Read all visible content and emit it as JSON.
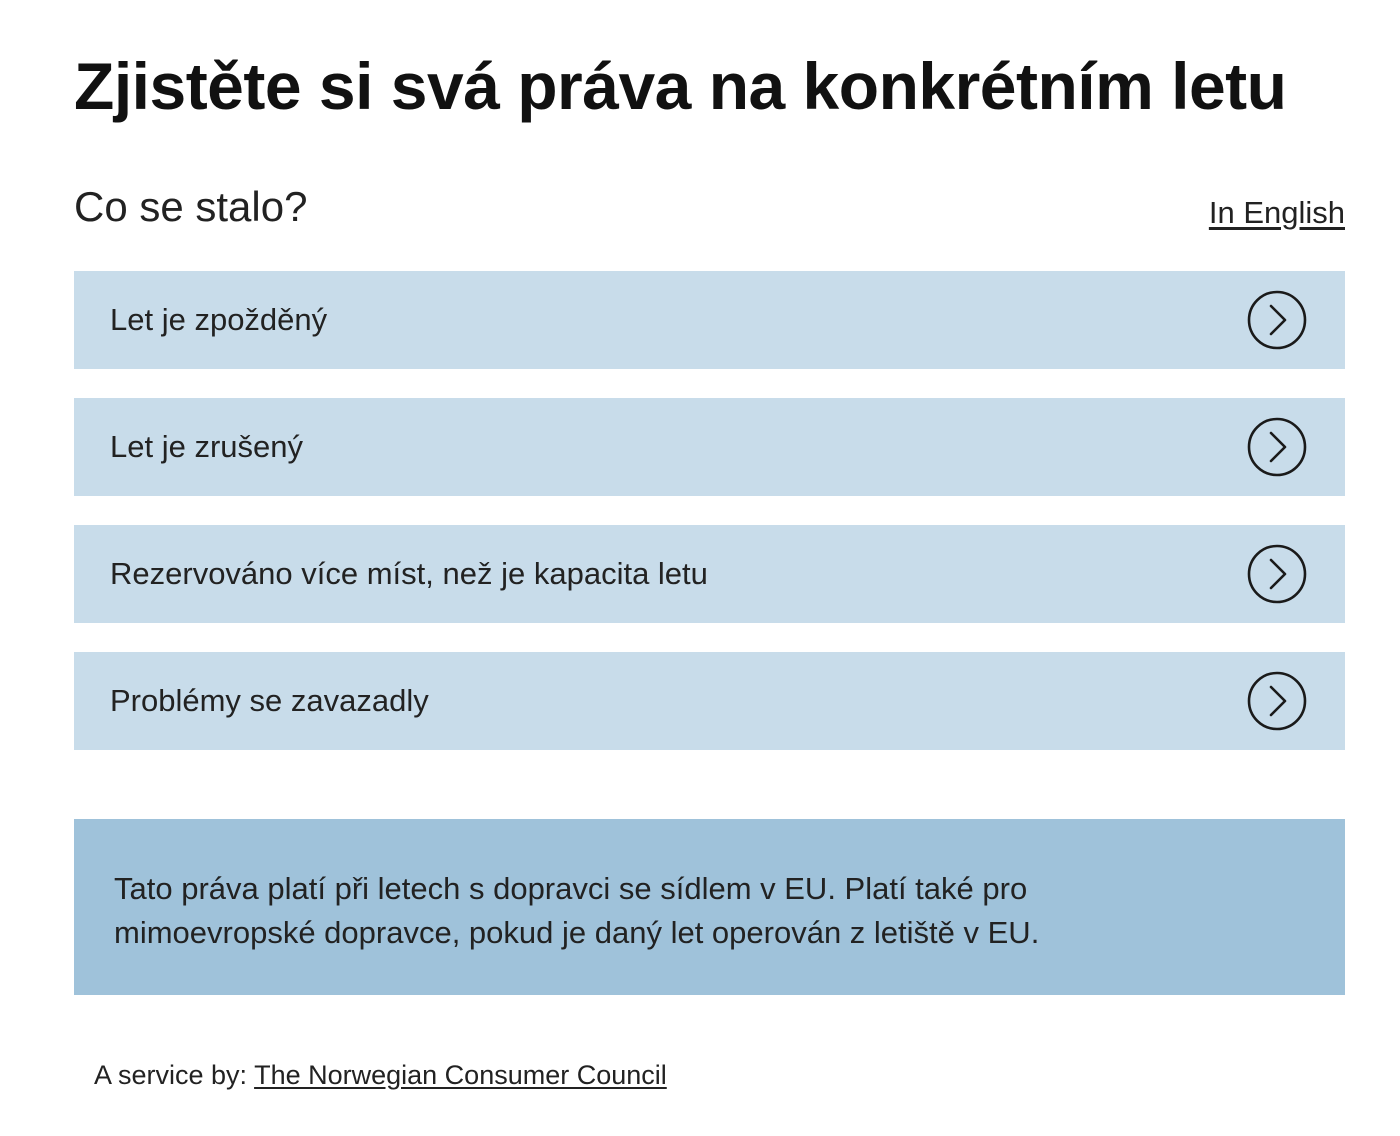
{
  "page": {
    "title": "Zjistěte si svá práva na konkrétním letu"
  },
  "subheader": {
    "question": "Co se stalo?",
    "language_link": "In English"
  },
  "options": [
    {
      "label": "Let je zpožděný",
      "icon": "chevron-right-circle-icon"
    },
    {
      "label": "Let je zrušený",
      "icon": "chevron-right-circle-icon"
    },
    {
      "label": "Rezervováno více míst, než je kapacita letu",
      "icon": "chevron-right-circle-icon"
    },
    {
      "label": "Problémy se zavazadly",
      "icon": "chevron-right-circle-icon"
    }
  ],
  "info": {
    "text": "Tato práva platí při letech s dopravci se sídlem v EU. Platí také pro mimoevropské dopravce, pokud je daný let operován z letiště v EU."
  },
  "footer": {
    "prefix": "A service by: ",
    "link": "The Norwegian Consumer Council"
  },
  "colors": {
    "option_background": "#c8dcea",
    "info_background": "#9fc2da",
    "text": "#222222"
  }
}
